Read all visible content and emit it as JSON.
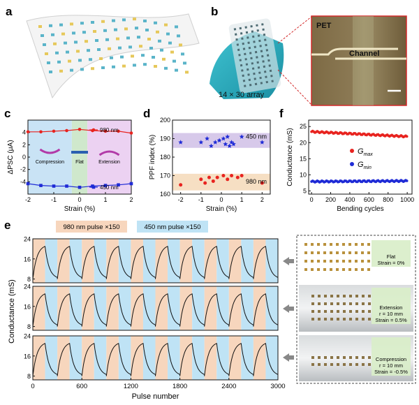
{
  "panels": {
    "a": "a",
    "b": "b",
    "c": "c",
    "d": "d",
    "e": "e",
    "f": "f"
  },
  "photo_b": {
    "array_label": "14 × 30 array",
    "inset_pet": "PET",
    "inset_channel": "Channel"
  },
  "chart_data": [
    {
      "id": "c",
      "type": "line",
      "xlabel": "Strain (%)",
      "ylabel": "ΔPSC (μA)",
      "xlim": [
        -2,
        2
      ],
      "xticks": [
        "-2",
        "-1",
        "0",
        "1",
        "2"
      ],
      "ylim": [
        -6,
        6
      ],
      "yticks": [
        "-4",
        "-2",
        "0",
        "2",
        "4"
      ],
      "x": [
        -2,
        -1.5,
        -1,
        -0.5,
        0,
        0.5,
        1,
        1.5,
        2
      ],
      "series": [
        {
          "name": "980 nm",
          "color": "#e8231f",
          "marker": "circle",
          "values": [
            4.1,
            4.1,
            4.2,
            4.3,
            4.5,
            4.3,
            4.2,
            4.2,
            3.9
          ]
        },
        {
          "name": "450 nm",
          "color": "#1f2bd6",
          "marker": "square",
          "values": [
            -4.3,
            -4.6,
            -4.7,
            -4.7,
            -4.9,
            -4.7,
            -4.6,
            -4.5,
            -4.3
          ]
        }
      ],
      "regions": [
        {
          "label": "Compression",
          "from": -2,
          "to": -0.3,
          "color": "#c9e3f5"
        },
        {
          "label": "Flat",
          "from": -0.3,
          "to": 0.3,
          "color": "#cfe8cc"
        },
        {
          "label": "Extension",
          "from": 0.3,
          "to": 2,
          "color": "#ecd2f2"
        }
      ]
    },
    {
      "id": "d",
      "type": "scatter",
      "xlabel": "Strain (%)",
      "ylabel": "PPF index (%)",
      "xlim": [
        -2.4,
        2.4
      ],
      "xticks": [
        "-2",
        "-1",
        "0",
        "1",
        "2"
      ],
      "ylim": [
        160,
        200
      ],
      "yticks": [
        "160",
        "170",
        "180",
        "190",
        "200"
      ],
      "bands": [
        {
          "from": 185,
          "to": 193,
          "color": "#d7c9ea"
        },
        {
          "from": 162,
          "to": 171,
          "color": "#f6dfc3"
        }
      ],
      "series": [
        {
          "name": "450 nm",
          "color": "#1f2bd6",
          "marker": "star",
          "x": [
            -2,
            -1,
            -0.7,
            -0.5,
            -0.3,
            -0.1,
            0.1,
            0.2,
            0.3,
            0.4,
            0.5,
            0.6,
            1,
            2
          ],
          "values": [
            188,
            188,
            190,
            186,
            188,
            189,
            190,
            187,
            191,
            186,
            188,
            187,
            191,
            188
          ]
        },
        {
          "name": "980 nm",
          "color": "#e8231f",
          "marker": "circle",
          "x": [
            -2,
            -1,
            -0.8,
            -0.6,
            -0.4,
            -0.2,
            0.1,
            0.3,
            0.5,
            0.8,
            1,
            2
          ],
          "values": [
            165,
            168,
            166,
            169,
            167,
            169,
            170,
            168,
            170,
            169,
            170,
            166
          ]
        }
      ]
    },
    {
      "id": "f",
      "type": "scatter",
      "xlabel": "Bending cycles",
      "ylabel": "Conductance (mS)",
      "xlim": [
        -30,
        1050
      ],
      "xticks": [
        "0",
        "200",
        "400",
        "600",
        "800",
        "1000"
      ],
      "ylim": [
        4,
        27
      ],
      "yticks": [
        "5",
        "10",
        "15",
        "20",
        "25"
      ],
      "series": [
        {
          "name": "G",
          "sub": "max",
          "color": "#e8231f",
          "marker": "circle",
          "start": 23.4,
          "end": 21.9
        },
        {
          "name": "G",
          "sub": "min",
          "color": "#1f2bd6",
          "marker": "circle",
          "start": 7.9,
          "end": 8.1
        }
      ]
    },
    {
      "id": "e",
      "type": "line",
      "xlabel": "Pulse number",
      "ylabel": "Conductance (mS)",
      "xlim": [
        0,
        3000
      ],
      "xticks": [
        "0",
        "600",
        "1200",
        "1800",
        "2400",
        "3000"
      ],
      "ylim": [
        6.5,
        24
      ],
      "yticks": [
        "8",
        "16",
        "24"
      ],
      "legend": [
        {
          "label": "980 nm pulse ×150",
          "color": "#f7d6bd"
        },
        {
          "label": "450 nm pulse ×150",
          "color": "#bfe3f5"
        }
      ],
      "cycle_length": 300,
      "cycles": 10,
      "min": 8,
      "max": 21,
      "rows": [
        {
          "condition": "Flat",
          "strain": "Strain = 0%"
        },
        {
          "condition": "Extension",
          "radius": "r = 10 mm",
          "strain": "Strain = 0.5%"
        },
        {
          "condition": "Compression",
          "radius": "r = 10 mm",
          "strain": "Strain = -0.5%"
        }
      ]
    }
  ]
}
